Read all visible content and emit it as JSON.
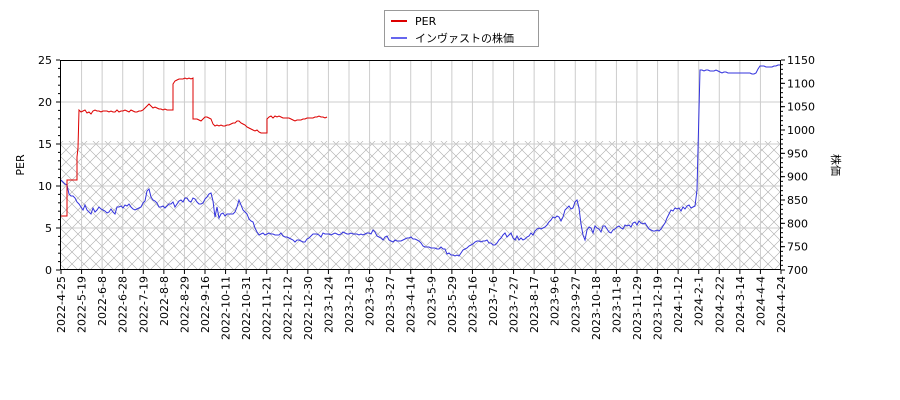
{
  "legend": {
    "items": [
      {
        "label": "PER",
        "color": "#dd0000"
      },
      {
        "label": "インヴァストの株価",
        "color": "#3333dd"
      }
    ]
  },
  "axes": {
    "left_title": "PER",
    "right_title": "株価",
    "left_ticks": [
      "0",
      "5",
      "10",
      "15",
      "20",
      "25"
    ],
    "right_ticks": [
      "700",
      "750",
      "800",
      "850",
      "900",
      "950",
      "1000",
      "1050",
      "1100",
      "1150"
    ],
    "x_ticks": [
      "2022-4-25",
      "2022-5-19",
      "2022-6-8",
      "2022-6-28",
      "2022-7-19",
      "2022-8-8",
      "2022-8-29",
      "2022-9-16",
      "2022-10-11",
      "2022-10-31",
      "2022-11-21",
      "2022-12-12",
      "2022-12-30",
      "2023-1-24",
      "2023-2-13",
      "2023-3-6",
      "2023-3-27",
      "2023-4-14",
      "2023-5-9",
      "2023-5-29",
      "2023-6-16",
      "2023-7-6",
      "2023-7-27",
      "2023-8-17",
      "2023-9-6",
      "2023-9-27",
      "2023-10-18",
      "2023-11-8",
      "2023-11-29",
      "2023-12-19",
      "2024-1-12",
      "2024-2-1",
      "2024-2-22",
      "2024-3-14",
      "2024-4-4",
      "2024-4-24"
    ]
  },
  "chart_data": {
    "type": "line",
    "title": "",
    "xlabel": "",
    "ylabel": "PER",
    "ylabel_right": "株価",
    "ylim": [
      0,
      25
    ],
    "ylim_right": [
      700,
      1150
    ],
    "grid": true,
    "legend_position": "top-center",
    "shaded_region": {
      "ymin": 0,
      "ymax": 15.4,
      "pattern": "crosshatch"
    },
    "categories": [
      "2022-4-25",
      "2022-5-19",
      "2022-6-8",
      "2022-6-28",
      "2022-7-19",
      "2022-8-8",
      "2022-8-29",
      "2022-9-16",
      "2022-10-11",
      "2022-10-31",
      "2022-11-21",
      "2022-12-12",
      "2022-12-30",
      "2023-1-24",
      "2023-2-13",
      "2023-3-6",
      "2023-3-27",
      "2023-4-14",
      "2023-5-9",
      "2023-5-29",
      "2023-6-16",
      "2023-7-6",
      "2023-7-27",
      "2023-8-17",
      "2023-9-6",
      "2023-9-27",
      "2023-10-18",
      "2023-11-8",
      "2023-11-29",
      "2023-12-19",
      "2024-1-12",
      "2024-2-1",
      "2024-2-22",
      "2024-3-14",
      "2024-4-4",
      "2024-4-24"
    ],
    "series": [
      {
        "name": "PER",
        "axis": "left",
        "color": "#dd0000",
        "values": [
          6.4,
          18.9,
          18.8,
          18.9,
          19.2,
          18.9,
          22.6,
          17.9,
          17.1,
          17.0,
          18.1,
          17.9,
          17.8,
          18.0,
          null,
          null,
          null,
          null,
          null,
          null,
          null,
          null,
          null,
          null,
          null,
          null,
          null,
          null,
          null,
          null,
          null,
          null,
          null,
          null,
          null,
          null
        ]
      },
      {
        "name": "インヴァストの株価",
        "axis": "right",
        "color": "#3333dd",
        "values": [
          880,
          845,
          840,
          845,
          845,
          845,
          850,
          855,
          830,
          830,
          780,
          768,
          775,
          778,
          778,
          775,
          768,
          765,
          750,
          738,
          760,
          760,
          770,
          775,
          800,
          805,
          795,
          800,
          805,
          795,
          835,
          1131,
          1126,
          1122,
          1140,
          1142
        ]
      }
    ]
  }
}
